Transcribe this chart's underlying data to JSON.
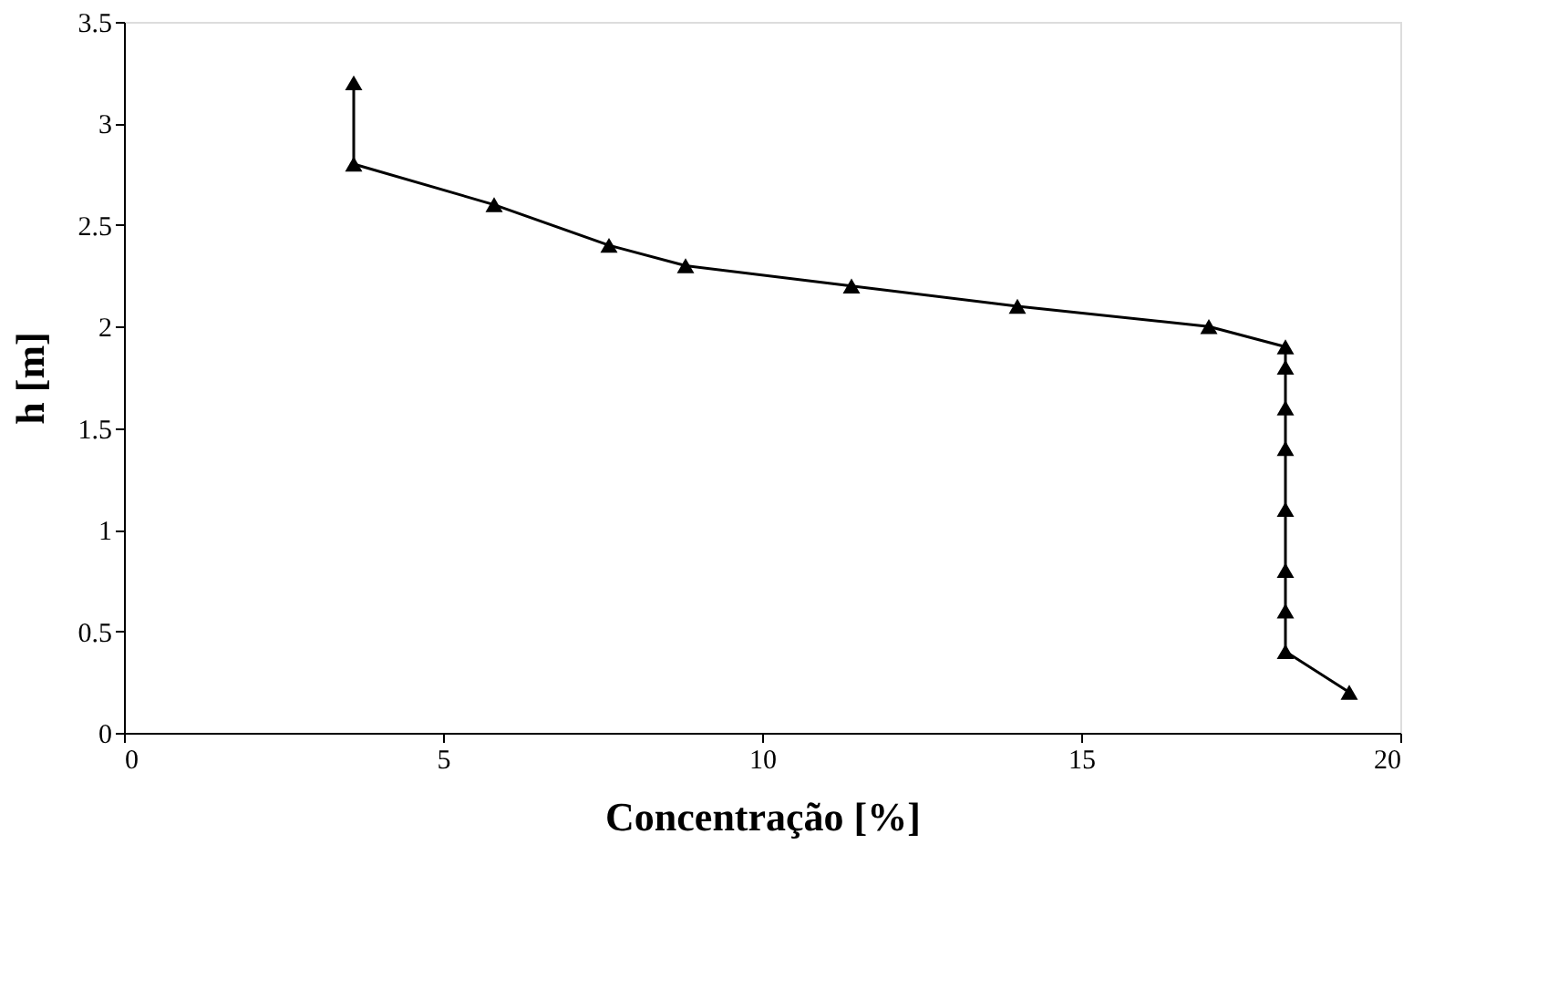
{
  "chart_data": {
    "type": "line",
    "xlabel": "Concentração [%]",
    "ylabel": "h [m]",
    "xlim": [
      0,
      20
    ],
    "xticks": [
      0,
      5,
      10,
      15,
      20
    ],
    "ylim": [
      0,
      3.5
    ],
    "yticks": [
      0,
      0.5,
      1,
      1.5,
      2,
      2.5,
      3,
      3.5
    ],
    "grid": false,
    "marker": "triangle",
    "line_style": "solid",
    "series": [
      {
        "color": "#000000",
        "x": [
          3.6,
          3.6,
          5.8,
          7.6,
          8.8,
          11.4,
          14.0,
          17.0,
          18.2,
          18.2,
          18.2,
          18.2,
          18.2,
          18.2,
          18.2,
          18.2,
          19.2
        ],
        "values": [
          3.2,
          2.8,
          2.6,
          2.4,
          2.3,
          2.2,
          2.1,
          2.0,
          1.9,
          1.8,
          1.6,
          1.4,
          1.1,
          0.8,
          0.6,
          0.4,
          0.2
        ]
      }
    ]
  }
}
